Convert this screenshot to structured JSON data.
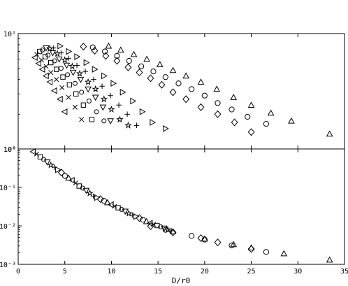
{
  "chart_data": [
    {
      "type": "scatter",
      "panel": "top",
      "title": "",
      "xlabel": "",
      "ylabel": "",
      "yscale": "log",
      "xlim": [
        0,
        35
      ],
      "ylim": [
        1,
        10
      ],
      "ytick_labels": [
        "10⁰",
        "10¹"
      ],
      "grid": false,
      "legend": "none",
      "marker_color": "#000000",
      "series": [
        {
          "marker": "triangle-left",
          "points": [
            [
              1.8,
              6.2
            ],
            [
              2.2,
              5.5
            ],
            [
              2.6,
              4.9
            ],
            [
              3.0,
              4.3
            ],
            [
              3.4,
              3.8
            ],
            [
              3.9,
              3.2
            ],
            [
              4.5,
              2.7
            ],
            [
              5.0,
              2.1
            ]
          ]
        },
        {
          "marker": "x",
          "points": [
            [
              2.0,
              6.6
            ],
            [
              2.5,
              5.9
            ],
            [
              3.0,
              5.2
            ],
            [
              3.5,
              4.6
            ],
            [
              4.1,
              4.0
            ],
            [
              4.7,
              3.4
            ],
            [
              5.4,
              2.8
            ],
            [
              6.1,
              2.3
            ],
            [
              6.8,
              1.8
            ]
          ]
        },
        {
          "marker": "square",
          "points": [
            [
              2.3,
              7.0
            ],
            [
              2.9,
              6.3
            ],
            [
              3.5,
              5.6
            ],
            [
              4.1,
              4.9
            ],
            [
              4.8,
              4.2
            ],
            [
              5.5,
              3.6
            ],
            [
              6.2,
              3.0
            ],
            [
              7.0,
              2.4
            ],
            [
              7.9,
              1.8
            ]
          ]
        },
        {
          "marker": "circle-small",
          "points": [
            [
              2.6,
              7.2
            ],
            [
              3.2,
              6.5
            ],
            [
              3.9,
              5.8
            ],
            [
              4.6,
              5.0
            ],
            [
              5.3,
              4.4
            ],
            [
              6.1,
              3.7
            ],
            [
              6.8,
              3.1
            ],
            [
              7.6,
              2.6
            ],
            [
              8.4,
              2.1
            ],
            [
              9.2,
              1.75
            ]
          ]
        },
        {
          "marker": "triangle-down",
          "points": [
            [
              3.0,
              7.5
            ],
            [
              3.7,
              6.8
            ],
            [
              4.4,
              6.0
            ],
            [
              5.2,
              5.3
            ],
            [
              5.9,
              4.6
            ],
            [
              6.7,
              4.0
            ],
            [
              7.5,
              3.3
            ],
            [
              8.3,
              2.8
            ],
            [
              9.1,
              2.3
            ],
            [
              9.9,
              1.75
            ]
          ]
        },
        {
          "marker": "star",
          "points": [
            [
              3.4,
              7.4
            ],
            [
              4.2,
              6.7
            ],
            [
              5.0,
              5.9
            ],
            [
              5.8,
              5.2
            ],
            [
              6.6,
              4.5
            ],
            [
              7.5,
              3.8
            ],
            [
              8.3,
              3.3
            ],
            [
              9.2,
              2.7
            ],
            [
              10.0,
              2.2
            ],
            [
              10.9,
              1.8
            ],
            [
              11.8,
              1.6
            ]
          ]
        },
        {
          "marker": "plus",
          "points": [
            [
              3.8,
              7.5
            ],
            [
              4.6,
              6.8
            ],
            [
              5.4,
              6.1
            ],
            [
              6.3,
              5.3
            ],
            [
              7.2,
              4.7
            ],
            [
              8.1,
              4.0
            ],
            [
              9.0,
              3.5
            ],
            [
              9.9,
              2.9
            ],
            [
              10.8,
              2.4
            ],
            [
              11.7,
              2.0
            ],
            [
              12.7,
              1.6
            ]
          ]
        },
        {
          "marker": "triangle-right",
          "points": [
            [
              4.5,
              7.8
            ],
            [
              5.4,
              7.0
            ],
            [
              6.3,
              6.3
            ],
            [
              7.3,
              5.6
            ],
            [
              8.2,
              4.9
            ],
            [
              9.2,
              4.3
            ],
            [
              10.2,
              3.7
            ],
            [
              11.2,
              3.1
            ],
            [
              12.3,
              2.6
            ],
            [
              13.3,
              2.1
            ],
            [
              14.4,
              1.7
            ],
            [
              15.8,
              1.5
            ]
          ]
        },
        {
          "marker": "diamond",
          "points": [
            [
              7.0,
              7.7
            ],
            [
              8.2,
              7.1
            ],
            [
              9.4,
              6.4
            ],
            [
              10.6,
              5.8
            ],
            [
              11.8,
              5.1
            ],
            [
              13.0,
              4.6
            ],
            [
              14.2,
              4.1
            ],
            [
              15.4,
              3.6
            ],
            [
              16.6,
              3.1
            ],
            [
              18.0,
              2.7
            ],
            [
              19.6,
              2.3
            ],
            [
              21.4,
              2.0
            ],
            [
              23.2,
              1.7
            ],
            [
              25.0,
              1.4
            ]
          ]
        },
        {
          "marker": "circle",
          "points": [
            [
              8.0,
              7.6
            ],
            [
              9.3,
              7.0
            ],
            [
              10.6,
              6.4
            ],
            [
              11.9,
              5.8
            ],
            [
              13.2,
              5.2
            ],
            [
              14.5,
              4.7
            ],
            [
              15.8,
              4.2
            ],
            [
              17.2,
              3.7
            ],
            [
              18.6,
              3.3
            ],
            [
              20.0,
              2.9
            ],
            [
              21.4,
              2.5
            ],
            [
              22.9,
              2.2
            ],
            [
              24.6,
              1.9
            ],
            [
              26.6,
              1.65
            ]
          ]
        },
        {
          "marker": "triangle-up",
          "points": [
            [
              9.7,
              7.8
            ],
            [
              11.0,
              7.2
            ],
            [
              12.4,
              6.6
            ],
            [
              13.8,
              6.0
            ],
            [
              15.2,
              5.4
            ],
            [
              16.6,
              4.8
            ],
            [
              18.0,
              4.3
            ],
            [
              19.6,
              3.8
            ],
            [
              21.3,
              3.3
            ],
            [
              23.1,
              2.8
            ],
            [
              25.0,
              2.4
            ],
            [
              27.1,
              2.05
            ],
            [
              29.3,
              1.75
            ],
            [
              33.4,
              1.35
            ]
          ]
        }
      ]
    },
    {
      "type": "scatter",
      "panel": "bottom",
      "title": "",
      "xlabel": "D/r0",
      "ylabel": "",
      "yscale": "log",
      "xlim": [
        0,
        35
      ],
      "ylim": [
        0.001,
        1
      ],
      "xtick_labels": [
        "0",
        "5",
        "10",
        "15",
        "20",
        "25",
        "30",
        "35"
      ],
      "ytick_labels": [
        "10⁻³",
        "10⁻²",
        "10⁻¹",
        "10⁰"
      ],
      "grid": false,
      "legend": "none",
      "collapsed_curve": {
        "x": [
          1.6,
          2.5,
          3.5,
          5,
          6.5,
          8,
          10,
          12,
          14,
          16,
          18,
          20,
          22.5,
          25,
          28.5,
          33.4
        ],
        "y": [
          0.85,
          0.58,
          0.38,
          0.2,
          0.11,
          0.06,
          0.035,
          0.02,
          0.012,
          0.008,
          0.0055,
          0.0042,
          0.0032,
          0.0025,
          0.0019,
          0.0013
        ]
      },
      "series": [
        {
          "marker": "diamond",
          "points": [
            [
              14.2,
              0.0098
            ],
            [
              16.6,
              0.0068
            ],
            [
              19.6,
              0.0048
            ],
            [
              21.4,
              0.0037
            ],
            [
              25.0,
              0.0025
            ]
          ]
        },
        {
          "marker": "circle",
          "points": [
            [
              15.8,
              0.0079
            ],
            [
              18.6,
              0.0055
            ],
            [
              20.0,
              0.0044
            ],
            [
              22.9,
              0.0031
            ],
            [
              26.6,
              0.0021
            ]
          ]
        },
        {
          "marker": "triangle-up",
          "points": [
            [
              16.6,
              0.0071
            ],
            [
              20.0,
              0.0046
            ],
            [
              23.1,
              0.0033
            ],
            [
              25.0,
              0.0027
            ],
            [
              28.5,
              0.0019
            ],
            [
              33.4,
              0.0013
            ]
          ]
        }
      ]
    }
  ]
}
